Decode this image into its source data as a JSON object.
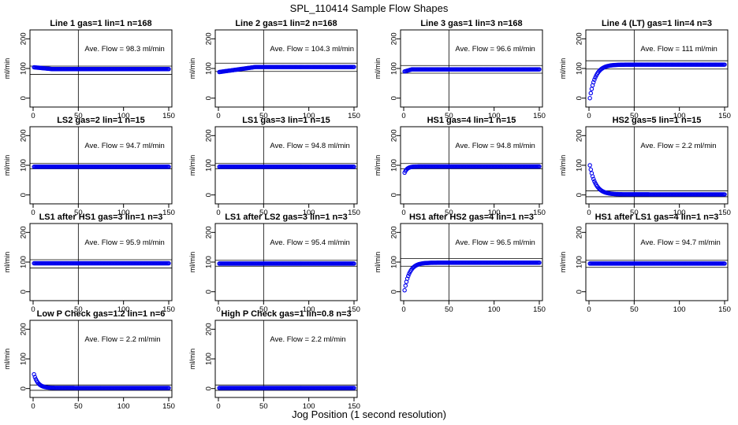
{
  "figure": {
    "title": "SPL_110414  Sample Flow Shapes",
    "xlabel": "Jog Position (1 second resolution)"
  },
  "colors": {
    "points": "#0000ee",
    "axes": "#000000",
    "background": "#ffffff"
  },
  "chart_data": [
    {
      "type": "scatter",
      "title": "Line 1 gas=1 lin=1 n=168",
      "ylabel": "ml/min",
      "annotation": "Ave. Flow = 98.3  ml/min",
      "xlim": [
        0,
        150
      ],
      "ylim": [
        -30,
        230
      ],
      "xticks": [
        0,
        50,
        100,
        150
      ],
      "yticks": [
        0,
        100,
        200
      ],
      "vline": 50,
      "hlines": [
        80,
        108
      ],
      "series": [
        {
          "shape": "constant",
          "start": 104,
          "end": 98,
          "settle": 20,
          "x": [
            1,
            150
          ]
        }
      ]
    },
    {
      "type": "scatter",
      "title": "Line 2 gas=1 lin=2 n=168",
      "ylabel": "ml/min",
      "annotation": "Ave. Flow = 104.3  ml/min",
      "xlim": [
        0,
        150
      ],
      "ylim": [
        -30,
        230
      ],
      "xticks": [
        0,
        50,
        100,
        150
      ],
      "yticks": [
        0,
        100,
        200
      ],
      "vline": 50,
      "hlines": [
        90,
        118
      ],
      "series": [
        {
          "shape": "ramp",
          "start": 88,
          "end": 105,
          "settle": 40,
          "x": [
            1,
            150
          ]
        }
      ]
    },
    {
      "type": "scatter",
      "title": "Line 3 gas=1 lin=3 n=168",
      "ylabel": "ml/min",
      "annotation": "Ave. Flow = 96.6  ml/min",
      "xlim": [
        0,
        150
      ],
      "ylim": [
        -30,
        230
      ],
      "xticks": [
        0,
        50,
        100,
        150
      ],
      "yticks": [
        0,
        100,
        200
      ],
      "vline": 50,
      "hlines": [
        84,
        110
      ],
      "series": [
        {
          "shape": "ramp",
          "start": 90,
          "end": 97,
          "settle": 8,
          "x": [
            1,
            150
          ]
        }
      ]
    },
    {
      "type": "scatter",
      "title": "Line 4 (LT) gas=1 lin=4 n=3",
      "ylabel": "ml/min",
      "annotation": "Ave. Flow = 111  ml/min",
      "xlim": [
        0,
        150
      ],
      "ylim": [
        -30,
        230
      ],
      "xticks": [
        0,
        50,
        100,
        150
      ],
      "yticks": [
        0,
        100,
        200
      ],
      "vline": 50,
      "hlines": [
        98,
        126
      ],
      "series": [
        {
          "shape": "rise",
          "start": 0,
          "end": 113,
          "settle": 25,
          "x": [
            1,
            150
          ]
        }
      ]
    },
    {
      "type": "scatter",
      "title": "LS2 gas=2 lin=1 n=15",
      "ylabel": "ml/min",
      "annotation": "Ave. Flow = 94.7  ml/min",
      "xlim": [
        0,
        150
      ],
      "ylim": [
        -30,
        230
      ],
      "xticks": [
        0,
        50,
        100,
        150
      ],
      "yticks": [
        0,
        100,
        200
      ],
      "vline": 50,
      "hlines": [
        88,
        106
      ],
      "series": [
        {
          "shape": "constant",
          "start": 95,
          "end": 95,
          "settle": 1,
          "x": [
            1,
            150
          ]
        }
      ]
    },
    {
      "type": "scatter",
      "title": "LS1 gas=3 lin=1 n=15",
      "ylabel": "ml/min",
      "annotation": "Ave. Flow = 94.8  ml/min",
      "xlim": [
        0,
        150
      ],
      "ylim": [
        -30,
        230
      ],
      "xticks": [
        0,
        50,
        100,
        150
      ],
      "yticks": [
        0,
        100,
        200
      ],
      "vline": 50,
      "hlines": [
        88,
        106
      ],
      "series": [
        {
          "shape": "constant",
          "start": 95,
          "end": 95,
          "settle": 1,
          "x": [
            1,
            150
          ]
        }
      ]
    },
    {
      "type": "scatter",
      "title": "HS1 gas=4 lin=1 n=15",
      "ylabel": "ml/min",
      "annotation": "Ave. Flow = 94.8  ml/min",
      "xlim": [
        0,
        150
      ],
      "ylim": [
        -30,
        230
      ],
      "xticks": [
        0,
        50,
        100,
        150
      ],
      "yticks": [
        0,
        100,
        200
      ],
      "vline": 50,
      "hlines": [
        88,
        106
      ],
      "series": [
        {
          "shape": "rise",
          "start": 75,
          "end": 96,
          "settle": 12,
          "x": [
            1,
            150
          ]
        }
      ]
    },
    {
      "type": "scatter",
      "title": "HS2 gas=5 lin=1 n=15",
      "ylabel": "ml/min",
      "annotation": "Ave. Flow = 2.2  ml/min",
      "xlim": [
        0,
        150
      ],
      "ylim": [
        -30,
        230
      ],
      "xticks": [
        0,
        50,
        100,
        150
      ],
      "yticks": [
        0,
        100,
        200
      ],
      "vline": 50,
      "hlines": [
        -6,
        14
      ],
      "series": [
        {
          "shape": "decay",
          "start": 100,
          "end": 2,
          "settle": 25,
          "x": [
            1,
            150
          ]
        }
      ]
    },
    {
      "type": "scatter",
      "title": "LS1 after HS1 gas=3 lin=1 n=3",
      "ylabel": "ml/min",
      "annotation": "Ave. Flow = 95.9  ml/min",
      "xlim": [
        0,
        150
      ],
      "ylim": [
        -30,
        230
      ],
      "xticks": [
        0,
        50,
        100,
        150
      ],
      "yticks": [
        0,
        100,
        200
      ],
      "vline": 50,
      "hlines": [
        80,
        108
      ],
      "series": [
        {
          "shape": "constant",
          "start": 96,
          "end": 96,
          "settle": 1,
          "x": [
            1,
            150
          ]
        }
      ]
    },
    {
      "type": "scatter",
      "title": "LS1 after LS2 gas=3 lin=1 n=3",
      "ylabel": "ml/min",
      "annotation": "Ave. Flow = 95.4  ml/min",
      "xlim": [
        0,
        150
      ],
      "ylim": [
        -30,
        230
      ],
      "xticks": [
        0,
        50,
        100,
        150
      ],
      "yticks": [
        0,
        100,
        200
      ],
      "vline": 50,
      "hlines": [
        86,
        106
      ],
      "series": [
        {
          "shape": "constant",
          "start": 95,
          "end": 95,
          "settle": 1,
          "x": [
            1,
            150
          ]
        }
      ]
    },
    {
      "type": "scatter",
      "title": "HS1 after HS2 gas=4 lin=1 n=3",
      "ylabel": "ml/min",
      "annotation": "Ave. Flow = 96.5  ml/min",
      "xlim": [
        0,
        150
      ],
      "ylim": [
        -30,
        230
      ],
      "xticks": [
        0,
        50,
        100,
        150
      ],
      "yticks": [
        0,
        100,
        200
      ],
      "vline": 50,
      "hlines": [
        86,
        112
      ],
      "series": [
        {
          "shape": "rise",
          "start": 5,
          "end": 98,
          "settle": 22,
          "x": [
            1,
            150
          ]
        }
      ]
    },
    {
      "type": "scatter",
      "title": "HS1 after LS1 gas=4 lin=1 n=3",
      "ylabel": "ml/min",
      "annotation": "Ave. Flow = 94.7  ml/min",
      "xlim": [
        0,
        150
      ],
      "ylim": [
        -30,
        230
      ],
      "xticks": [
        0,
        50,
        100,
        150
      ],
      "yticks": [
        0,
        100,
        200
      ],
      "vline": 50,
      "hlines": [
        82,
        106
      ],
      "series": [
        {
          "shape": "constant",
          "start": 95,
          "end": 95,
          "settle": 1,
          "x": [
            1,
            150
          ]
        }
      ]
    },
    {
      "type": "scatter",
      "title": "Low P Check gas=1.2 lin=1 n=6",
      "ylabel": "ml/min",
      "annotation": "Ave. Flow = 2.2  ml/min",
      "xlim": [
        0,
        150
      ],
      "ylim": [
        -30,
        230
      ],
      "xticks": [
        0,
        50,
        100,
        150
      ],
      "yticks": [
        0,
        100,
        200
      ],
      "vline": 50,
      "hlines": [
        -6,
        12
      ],
      "series": [
        {
          "shape": "decay",
          "start": 48,
          "end": 2,
          "settle": 18,
          "x": [
            1,
            150
          ]
        }
      ]
    },
    {
      "type": "scatter",
      "title": "High P Check gas=1 lin=0.8 n=3",
      "ylabel": "ml/min",
      "annotation": "Ave. Flow = 2.2  ml/min",
      "xlim": [
        0,
        150
      ],
      "ylim": [
        -30,
        230
      ],
      "xticks": [
        0,
        50,
        100,
        150
      ],
      "yticks": [
        0,
        100,
        200
      ],
      "vline": 50,
      "hlines": [
        -6,
        12
      ],
      "series": [
        {
          "shape": "constant",
          "start": 2,
          "end": 2,
          "settle": 1,
          "x": [
            1,
            150
          ]
        }
      ]
    }
  ]
}
